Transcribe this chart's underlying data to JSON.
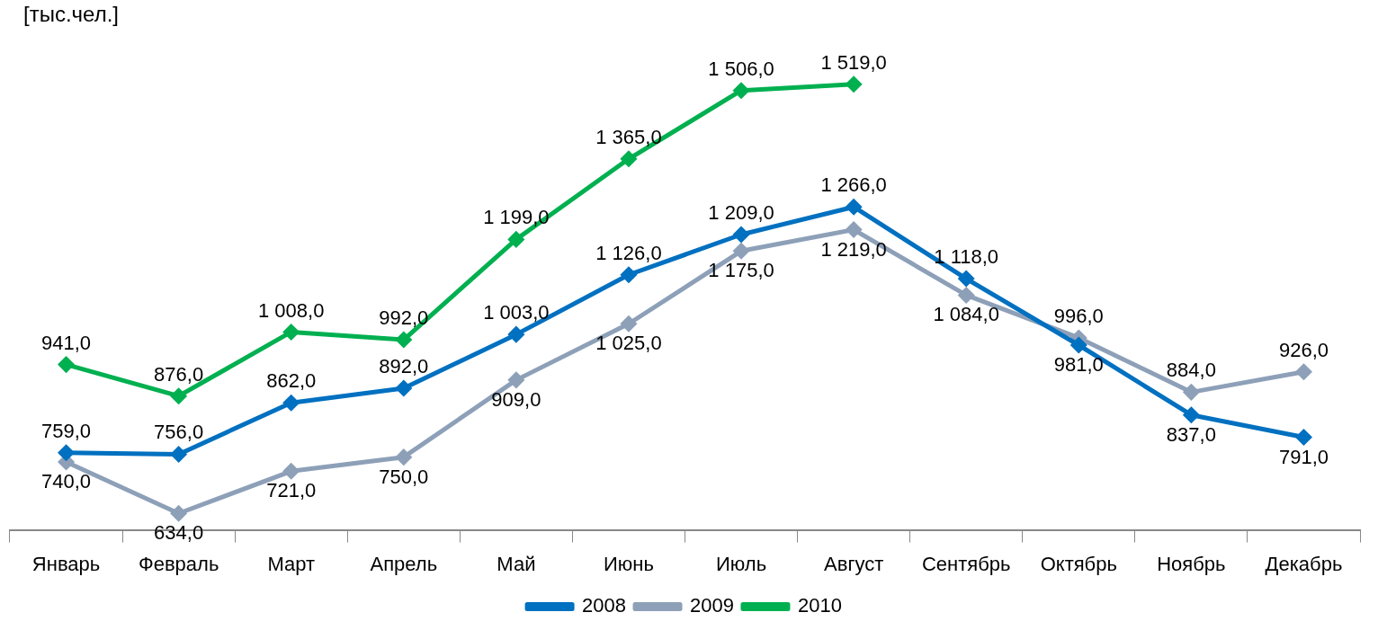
{
  "chart_data": {
    "type": "line",
    "title": "[тыс.чел.]",
    "categories": [
      "Январь",
      "Февраль",
      "Март",
      "Апрель",
      "Май",
      "Июнь",
      "Июль",
      "Август",
      "Сентябрь",
      "Октябрь",
      "Ноябрь",
      "Декабрь"
    ],
    "series": [
      {
        "name": "2008",
        "color": "#0070c0",
        "values": [
          759,
          756,
          862,
          892,
          1003,
          1126,
          1209,
          1266,
          1118,
          981,
          837,
          791
        ],
        "value_labels": [
          "759,0",
          "756,0",
          "862,0",
          "892,0",
          "1 003,0",
          "1 126,0",
          "1 209,0",
          "1 266,0",
          "1 118,0",
          "981,0",
          "837,0",
          "791,0"
        ]
      },
      {
        "name": "2009",
        "color": "#8da0b8",
        "values": [
          740,
          634,
          721,
          750,
          909,
          1025,
          1175,
          1219,
          1084,
          996,
          884,
          926
        ],
        "value_labels": [
          "740,0",
          "634,0",
          "721,0",
          "750,0",
          "909,0",
          "1 025,0",
          "1 175,0",
          "1 219,0",
          "1 084,0",
          "996,0",
          "884,0",
          "926,0"
        ]
      },
      {
        "name": "2010",
        "color": "#00b050",
        "values": [
          941,
          876,
          1008,
          992,
          1199,
          1365,
          1506,
          1519,
          null,
          null,
          null,
          null
        ],
        "value_labels": [
          "941,0",
          "876,0",
          "1 008,0",
          "992,0",
          "1 199,0",
          "1 365,0",
          "1 506,0",
          "1 519,0",
          null,
          null,
          null,
          null
        ]
      }
    ],
    "tick_labels": "x",
    "legend": "bottom",
    "marker": "diamond",
    "line_style": "solid",
    "grid": false
  }
}
